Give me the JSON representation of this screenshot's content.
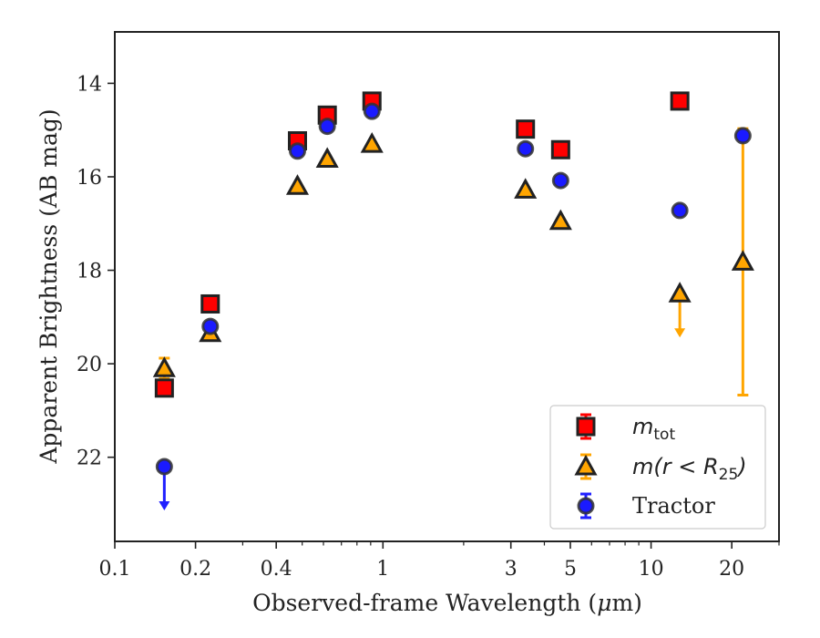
{
  "chart_data": {
    "type": "scatter",
    "xlabel_prefix": "Observed-frame Wavelength (",
    "xlabel_unit_mu": "μ",
    "xlabel_suffix": "m)",
    "ylabel": "Apparent Brightness (AB mag)",
    "x_scale": "log",
    "xlim": [
      0.1,
      30
    ],
    "ylim": [
      23.8,
      12.9
    ],
    "y_inverted": true,
    "x_ticks": [
      {
        "value": 0.1,
        "label": "0.1"
      },
      {
        "value": 0.2,
        "label": "0.2"
      },
      {
        "value": 0.4,
        "label": "0.4"
      },
      {
        "value": 1,
        "label": "1"
      },
      {
        "value": 3,
        "label": "3"
      },
      {
        "value": 5,
        "label": "5"
      },
      {
        "value": 10,
        "label": "10"
      },
      {
        "value": 20,
        "label": "20"
      }
    ],
    "y_ticks": [
      {
        "value": 14,
        "label": "14"
      },
      {
        "value": 16,
        "label": "16"
      },
      {
        "value": 18,
        "label": "18"
      },
      {
        "value": 20,
        "label": "20"
      },
      {
        "value": 22,
        "label": "22"
      }
    ],
    "grid": false,
    "legend_position": "bottom-right",
    "series": [
      {
        "name": "m_tot",
        "legend_base": "m",
        "legend_sub": "tot",
        "marker": "square",
        "color": "#ff0000",
        "edge": "#222222",
        "errcolor": "#ff0000",
        "points": [
          {
            "x": 0.153,
            "y": 20.52
          },
          {
            "x": 0.227,
            "y": 18.72
          },
          {
            "x": 0.48,
            "y": 15.23
          },
          {
            "x": 0.62,
            "y": 14.68
          },
          {
            "x": 0.91,
            "y": 14.38
          },
          {
            "x": 3.4,
            "y": 14.98
          },
          {
            "x": 4.6,
            "y": 15.42
          },
          {
            "x": 12.8,
            "y": 14.38
          }
        ]
      },
      {
        "name": "m(r < R_25)",
        "legend_base": "m(r < R",
        "legend_sub": "25",
        "legend_end": ")",
        "marker": "triangle",
        "color": "#ffa500",
        "edge": "#222222",
        "errcolor": "#ffa500",
        "points": [
          {
            "x": 0.153,
            "y": 20.1,
            "yerr": 0.22
          },
          {
            "x": 0.227,
            "y": 19.35
          },
          {
            "x": 0.48,
            "y": 16.2
          },
          {
            "x": 0.62,
            "y": 15.62
          },
          {
            "x": 0.91,
            "y": 15.3
          },
          {
            "x": 3.4,
            "y": 16.28
          },
          {
            "x": 4.6,
            "y": 16.95
          },
          {
            "x": 12.8,
            "y": 18.5,
            "upper_limit": true
          },
          {
            "x": 22.0,
            "y": 17.82,
            "yerr": 2.85
          }
        ]
      },
      {
        "name": "Tractor",
        "legend_base": "Tractor",
        "marker": "circle",
        "color": "#1a1aff",
        "edge": "#333333",
        "errcolor": "#2020ff",
        "points": [
          {
            "x": 0.153,
            "y": 22.2,
            "upper_limit": true
          },
          {
            "x": 0.227,
            "y": 19.2
          },
          {
            "x": 0.48,
            "y": 15.45
          },
          {
            "x": 0.62,
            "y": 14.92
          },
          {
            "x": 0.91,
            "y": 14.6
          },
          {
            "x": 3.4,
            "y": 15.4
          },
          {
            "x": 4.6,
            "y": 16.08
          },
          {
            "x": 12.8,
            "y": 16.72
          },
          {
            "x": 22.0,
            "y": 15.12
          }
        ]
      }
    ]
  }
}
